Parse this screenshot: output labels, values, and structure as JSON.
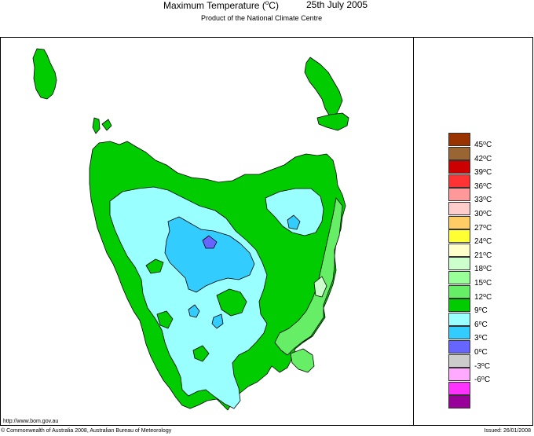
{
  "header": {
    "title_prefix": "Maximum Temperature (",
    "title_unit": "o",
    "title_suffix": "C)",
    "date": "25th July 2005",
    "subtitle": "Product of the National Climate Centre"
  },
  "legend": {
    "items": [
      {
        "label": "45",
        "color": "#993300"
      },
      {
        "label": "42",
        "color": "#996633"
      },
      {
        "label": "39",
        "color": "#cc0000"
      },
      {
        "label": "36",
        "color": "#ff3333"
      },
      {
        "label": "33",
        "color": "#ff9999"
      },
      {
        "label": "30",
        "color": "#ffcccc"
      },
      {
        "label": "27",
        "color": "#ffcc66"
      },
      {
        "label": "24",
        "color": "#ffff33"
      },
      {
        "label": "21",
        "color": "#ffffcc"
      },
      {
        "label": "18",
        "color": "#ccffcc"
      },
      {
        "label": "15",
        "color": "#99ff99"
      },
      {
        "label": "12",
        "color": "#66ee66"
      },
      {
        "label": "9",
        "color": "#00cc00"
      },
      {
        "label": "6",
        "color": "#99ffff"
      },
      {
        "label": "3",
        "color": "#33ccff"
      },
      {
        "label": "0",
        "color": "#6666ff"
      },
      {
        "label": "-3",
        "color": "#cccccc"
      },
      {
        "label": "-6",
        "color": "#ffaaff"
      },
      {
        "label": "",
        "color": "#ff33ff"
      },
      {
        "label": "",
        "color": "#990099"
      }
    ],
    "unit_sup": "o",
    "unit": "C"
  },
  "map_colors": {
    "green": "#00cc00",
    "light_green": "#66ee66",
    "pale_green": "#ccffcc",
    "cyan": "#99ffff",
    "blue": "#33ccff",
    "violet": "#6666ff"
  },
  "footer": {
    "url": "http://www.bom.gov.au",
    "copyright": "© Commonwealth of Australia 2008, Australian Bureau of Meteorology",
    "issued": "Issued: 26/01/2008"
  }
}
